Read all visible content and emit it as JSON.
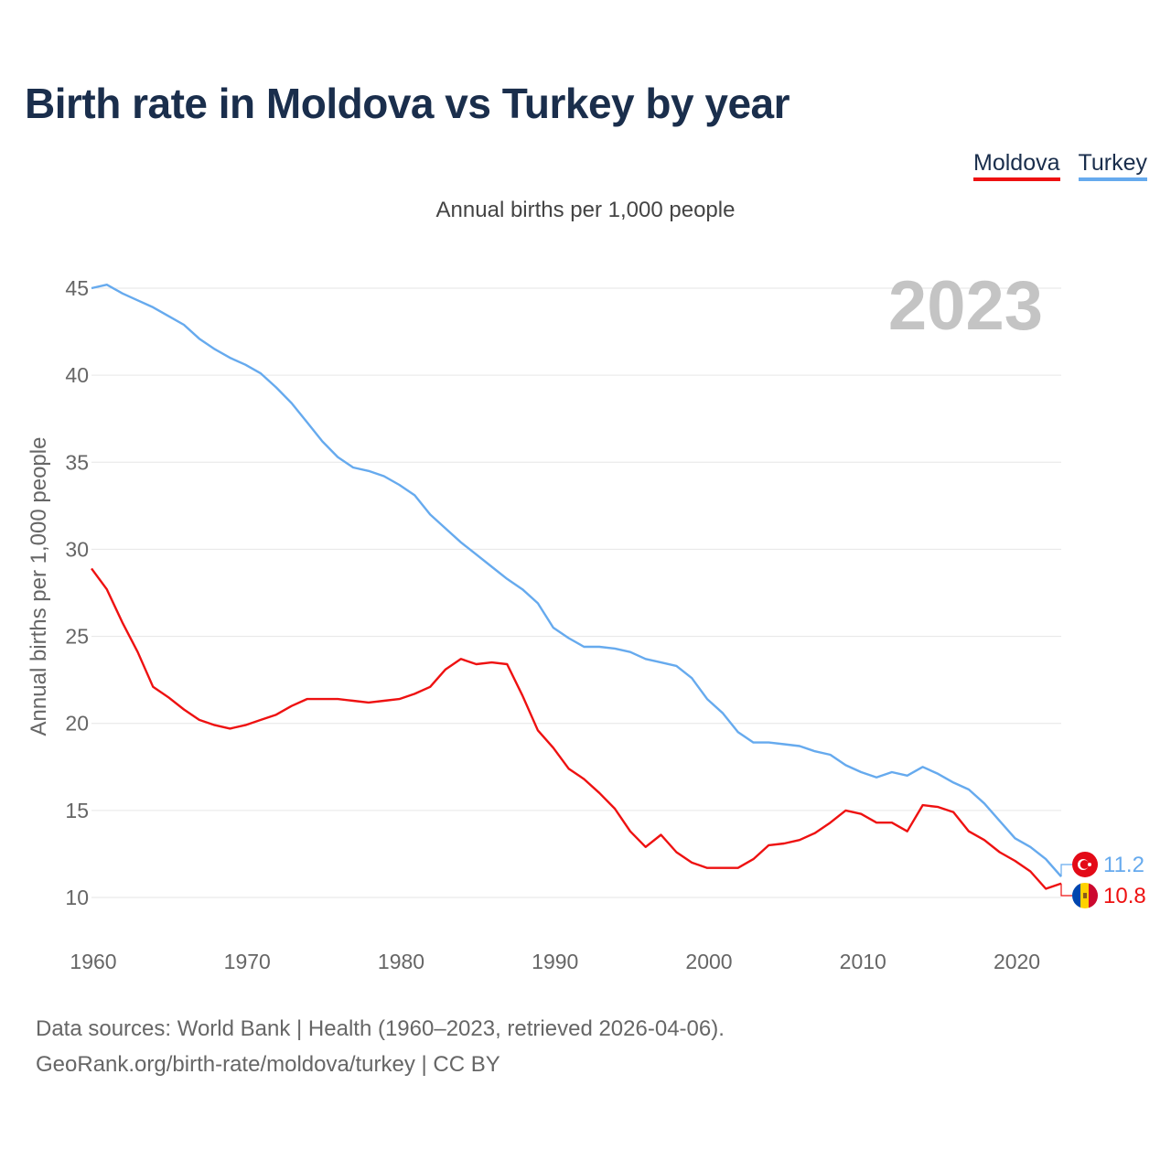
{
  "title": "Birth rate in Moldova vs Turkey by year",
  "subtitle": "Annual births per 1,000 people",
  "legend": [
    {
      "label": "Moldova",
      "color": "#ee1111"
    },
    {
      "label": "Turkey",
      "color": "#66aaee"
    }
  ],
  "watermark_year": "2023",
  "chart_data": {
    "type": "line",
    "title": "Birth rate in Moldova vs Turkey by year",
    "ylabel": "Annual births per 1,000 people",
    "xlabel": "",
    "xlim": [
      1960,
      2023
    ],
    "ylim": [
      10,
      45
    ],
    "x_ticks": [
      1960,
      1970,
      1980,
      1990,
      2000,
      2010,
      2020
    ],
    "y_ticks": [
      10,
      15,
      20,
      25,
      30,
      35,
      40,
      45
    ],
    "grid": true,
    "x": [
      1960,
      1961,
      1962,
      1963,
      1964,
      1965,
      1966,
      1967,
      1968,
      1969,
      1970,
      1971,
      1972,
      1973,
      1974,
      1975,
      1976,
      1977,
      1978,
      1979,
      1980,
      1981,
      1982,
      1983,
      1984,
      1985,
      1986,
      1987,
      1988,
      1989,
      1990,
      1991,
      1992,
      1993,
      1994,
      1995,
      1996,
      1997,
      1998,
      1999,
      2000,
      2001,
      2002,
      2003,
      2004,
      2005,
      2006,
      2007,
      2008,
      2009,
      2010,
      2011,
      2012,
      2013,
      2014,
      2015,
      2016,
      2017,
      2018,
      2019,
      2020,
      2021,
      2022,
      2023
    ],
    "series": [
      {
        "name": "Turkey",
        "color": "#66aaee",
        "end_label": "11.2",
        "values": [
          45.0,
          45.2,
          44.7,
          44.3,
          43.9,
          43.4,
          42.9,
          42.1,
          41.5,
          41.0,
          40.6,
          40.1,
          39.3,
          38.4,
          37.3,
          36.2,
          35.3,
          34.7,
          34.5,
          34.2,
          33.7,
          33.1,
          32.0,
          31.2,
          30.4,
          29.7,
          29.0,
          28.3,
          27.7,
          26.9,
          25.5,
          24.9,
          24.4,
          24.4,
          24.3,
          24.1,
          23.7,
          23.5,
          23.3,
          22.6,
          21.4,
          20.6,
          19.5,
          18.9,
          18.9,
          18.8,
          18.7,
          18.4,
          18.2,
          17.6,
          17.2,
          16.9,
          17.2,
          17.0,
          17.5,
          17.1,
          16.6,
          16.2,
          15.4,
          14.4,
          13.4,
          12.9,
          12.2,
          11.2
        ]
      },
      {
        "name": "Moldova",
        "color": "#ee1111",
        "end_label": "10.8",
        "values": [
          28.9,
          27.7,
          25.8,
          24.1,
          22.1,
          21.5,
          20.8,
          20.2,
          19.9,
          19.7,
          19.9,
          20.2,
          20.5,
          21.0,
          21.4,
          21.4,
          21.4,
          21.3,
          21.2,
          21.3,
          21.4,
          21.7,
          22.1,
          23.1,
          23.7,
          23.4,
          23.5,
          23.4,
          21.6,
          19.6,
          18.6,
          17.4,
          16.8,
          16.0,
          15.1,
          13.8,
          12.9,
          13.6,
          12.6,
          12.0,
          11.7,
          11.7,
          11.7,
          12.2,
          13.0,
          13.1,
          13.3,
          13.7,
          14.3,
          15.0,
          14.8,
          14.3,
          14.3,
          13.8,
          15.3,
          15.2,
          14.9,
          13.8,
          13.3,
          12.6,
          12.1,
          11.5,
          10.5,
          10.8
        ]
      }
    ]
  },
  "source_line_1": "Data sources: World Bank | Health (1960–2023, retrieved 2026-04-06).",
  "source_line_2": "GeoRank.org/birth-rate/moldova/turkey | CC BY"
}
